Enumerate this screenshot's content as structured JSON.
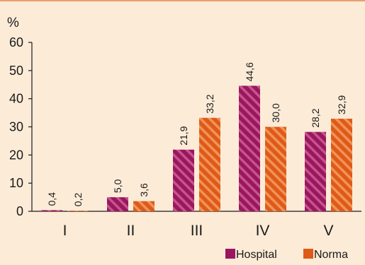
{
  "chart_data": {
    "type": "bar",
    "unit_label": "%",
    "categories": [
      "I",
      "II",
      "III",
      "IV",
      "V"
    ],
    "series": [
      {
        "name": "Hospital",
        "values": [
          0.4,
          5.0,
          21.9,
          44.6,
          28.2
        ],
        "labels": [
          "0,4",
          "5,0",
          "21,9",
          "44,6",
          "28,2"
        ],
        "color": "#9b1660",
        "stripe_color": "#c4558a"
      },
      {
        "name": "Norma",
        "values": [
          0.2,
          3.6,
          33.2,
          30.0,
          32.9
        ],
        "labels": [
          "0,2",
          "3,6",
          "33,2",
          "30,0",
          "32,9"
        ],
        "color": "#df5a17",
        "stripe_color": "#f0935a"
      }
    ],
    "yticks": [
      0,
      10,
      20,
      30,
      40,
      50,
      60
    ],
    "ylim": [
      0,
      60
    ],
    "grid": false,
    "legend_position": "bottom-right",
    "background": "#fcebd7"
  }
}
